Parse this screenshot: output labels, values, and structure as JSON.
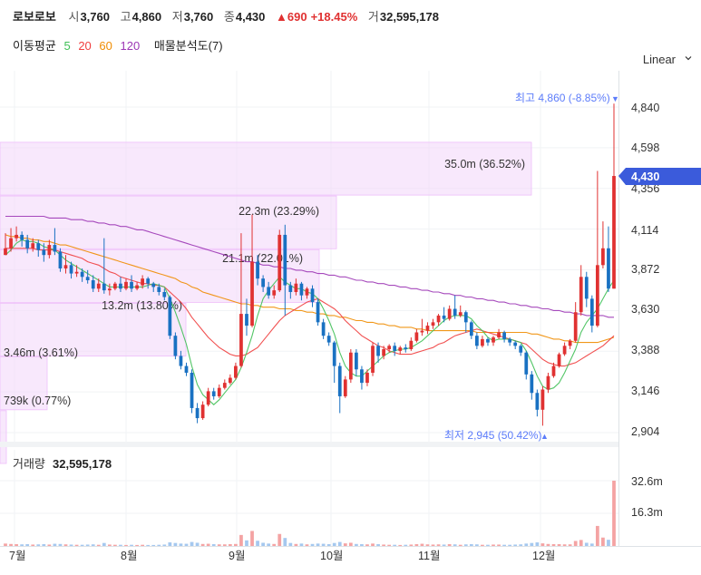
{
  "header": {
    "name": "로보로보",
    "open_label": "시",
    "open": "3,760",
    "high_label": "고",
    "high": "4,860",
    "low_label": "저",
    "low": "3,760",
    "close_label": "종",
    "close": "4,430",
    "change": "▲690",
    "change_pct": "+18.45%",
    "volume_label": "거",
    "volume": "32,595,178"
  },
  "ma_legend": {
    "label": "이동평균",
    "periods": [
      "5",
      "20",
      "60",
      "120"
    ],
    "volume_profile": "매물분석도(7)"
  },
  "scale_mode": "Linear",
  "price_axis": {
    "ticks": [
      "4,840",
      "4,598",
      "4,356",
      "4,114",
      "3,872",
      "3,630",
      "3,388",
      "3,146",
      "2,904"
    ],
    "current": "4,430"
  },
  "annotations": {
    "max_text": "최고 4,860 (-8.85%)",
    "min_text": "최저 2,945 (50.42%)"
  },
  "volume_profile": [
    {
      "label": "35.0m (36.52%)"
    },
    {
      "label": "22.3m (23.29%)"
    },
    {
      "label": "21.1m (22.01%)"
    },
    {
      "label": "13.2m (13.80%)"
    },
    {
      "label": "3.46m (3.61%)"
    },
    {
      "label": "739k (0.77%)"
    }
  ],
  "volume_panel": {
    "title_label": "거래량",
    "title_value": "32,595,178",
    "ticks": [
      "32.6m",
      "16.3m"
    ]
  },
  "x_axis": {
    "labels": [
      "7월",
      "8월",
      "9월",
      "10월",
      "11월",
      "12월"
    ]
  },
  "colors": {
    "up": "#e03131",
    "down": "#1971c2",
    "ma5": "#40c057",
    "ma20": "#f03e3e",
    "ma60": "#f08c00",
    "ma120": "#9c36b5",
    "profile": "#f3d9fa",
    "current": "#3b5bdb"
  },
  "chart_data": {
    "type": "candlestick",
    "ylim": [
      2904,
      4840
    ],
    "volume_ylim": [
      0,
      32.6
    ],
    "candles": [
      [
        3960,
        4000,
        4090,
        3960
      ],
      [
        4000,
        4060,
        4120,
        3980
      ],
      [
        4060,
        4080,
        4130,
        4040
      ],
      [
        4080,
        4050,
        4100,
        4010
      ],
      [
        4050,
        4000,
        4080,
        3970
      ],
      [
        4000,
        4030,
        4060,
        3980
      ],
      [
        4030,
        3990,
        4050,
        3950
      ],
      [
        3990,
        3960,
        4030,
        3920
      ],
      [
        3960,
        4020,
        4050,
        3940
      ],
      [
        4020,
        3980,
        4120,
        3960
      ],
      [
        3980,
        3880,
        4000,
        3860
      ],
      [
        3880,
        3900,
        3960,
        3850
      ],
      [
        3900,
        3850,
        3920,
        3820
      ],
      [
        3850,
        3860,
        3900,
        3830
      ],
      [
        3860,
        3830,
        3880,
        3800
      ],
      [
        3830,
        3810,
        3870,
        3790
      ],
      [
        3810,
        3760,
        3840,
        3740
      ],
      [
        3760,
        3790,
        3820,
        3740
      ],
      [
        3790,
        3750,
        4060,
        3730
      ],
      [
        3750,
        3760,
        3790,
        3720
      ],
      [
        3760,
        3790,
        3800,
        3750
      ],
      [
        3790,
        3760,
        3830,
        3740
      ],
      [
        3760,
        3800,
        3820,
        3750
      ],
      [
        3800,
        3760,
        3840,
        3740
      ],
      [
        3760,
        3780,
        3800,
        3750
      ],
      [
        3780,
        3820,
        3840,
        3760
      ],
      [
        3820,
        3790,
        3830,
        3760
      ],
      [
        3790,
        3770,
        3800,
        3740
      ],
      [
        3770,
        3740,
        3790,
        3720
      ],
      [
        3740,
        3710,
        3760,
        3690
      ],
      [
        3710,
        3480,
        3720,
        3460
      ],
      [
        3480,
        3360,
        3500,
        3340
      ],
      [
        3360,
        3300,
        3390,
        3280
      ],
      [
        3300,
        3260,
        3320,
        3240
      ],
      [
        3260,
        3050,
        3280,
        3020
      ],
      [
        3050,
        2990,
        3080,
        2960
      ],
      [
        2990,
        3070,
        3090,
        2980
      ],
      [
        3070,
        3150,
        3170,
        3060
      ],
      [
        3150,
        3120,
        3170,
        3100
      ],
      [
        3120,
        3170,
        3190,
        3110
      ],
      [
        3170,
        3200,
        3220,
        3160
      ],
      [
        3200,
        3230,
        3250,
        3190
      ],
      [
        3230,
        3300,
        3320,
        3220
      ],
      [
        3300,
        3610,
        4090,
        3290
      ],
      [
        3610,
        3540,
        3700,
        3480
      ],
      [
        3540,
        3920,
        4200,
        3530
      ],
      [
        3920,
        3820,
        3960,
        3780
      ],
      [
        3820,
        3770,
        3840,
        3740
      ],
      [
        3770,
        3720,
        3800,
        3700
      ],
      [
        3720,
        3750,
        3780,
        3700
      ],
      [
        3750,
        4080,
        4110,
        3740
      ],
      [
        4080,
        3780,
        4140,
        3600
      ],
      [
        3780,
        3740,
        3800,
        3700
      ],
      [
        3740,
        3790,
        3820,
        3720
      ],
      [
        3790,
        3720,
        3800,
        3690
      ],
      [
        3720,
        3760,
        3770,
        3700
      ],
      [
        3760,
        3680,
        3780,
        3650
      ],
      [
        3680,
        3560,
        3700,
        3540
      ],
      [
        3560,
        3480,
        3580,
        3460
      ],
      [
        3480,
        3440,
        3500,
        3420
      ],
      [
        3440,
        3300,
        3450,
        3200
      ],
      [
        3300,
        3120,
        3320,
        3020
      ],
      [
        3120,
        3220,
        3240,
        3110
      ],
      [
        3220,
        3380,
        3400,
        3200
      ],
      [
        3380,
        3280,
        3400,
        3240
      ],
      [
        3280,
        3200,
        3300,
        3160
      ],
      [
        3200,
        3260,
        3280,
        3180
      ],
      [
        3260,
        3420,
        3440,
        3240
      ],
      [
        3420,
        3360,
        3440,
        3320
      ],
      [
        3360,
        3400,
        3420,
        3340
      ],
      [
        3400,
        3420,
        3430,
        3380
      ],
      [
        3420,
        3390,
        3440,
        3360
      ],
      [
        3390,
        3410,
        3420,
        3370
      ],
      [
        3410,
        3400,
        3430,
        3380
      ],
      [
        3400,
        3450,
        3470,
        3390
      ],
      [
        3450,
        3500,
        3520,
        3440
      ],
      [
        3500,
        3510,
        3580,
        3480
      ],
      [
        3510,
        3540,
        3560,
        3490
      ],
      [
        3540,
        3560,
        3580,
        3520
      ],
      [
        3560,
        3600,
        3610,
        3540
      ],
      [
        3600,
        3580,
        3650,
        3560
      ],
      [
        3580,
        3640,
        3660,
        3570
      ],
      [
        3640,
        3600,
        3720,
        3580
      ],
      [
        3600,
        3620,
        3660,
        3590
      ],
      [
        3620,
        3560,
        3630,
        3500
      ],
      [
        3560,
        3480,
        3570,
        3460
      ],
      [
        3480,
        3420,
        3500,
        3400
      ],
      [
        3420,
        3460,
        3480,
        3410
      ],
      [
        3460,
        3440,
        3470,
        3420
      ],
      [
        3440,
        3470,
        3480,
        3420
      ],
      [
        3470,
        3500,
        3520,
        3460
      ],
      [
        3500,
        3460,
        3510,
        3440
      ],
      [
        3460,
        3440,
        3470,
        3420
      ],
      [
        3440,
        3420,
        3450,
        3400
      ],
      [
        3420,
        3380,
        3430,
        3360
      ],
      [
        3380,
        3250,
        3390,
        3220
      ],
      [
        3250,
        3140,
        3270,
        3100
      ],
      [
        3140,
        3040,
        3160,
        3000
      ],
      [
        3040,
        3160,
        3180,
        2945
      ],
      [
        3160,
        3240,
        3260,
        3140
      ],
      [
        3240,
        3300,
        3320,
        3230
      ],
      [
        3300,
        3370,
        3380,
        3290
      ],
      [
        3370,
        3420,
        3440,
        3360
      ],
      [
        3420,
        3450,
        3460,
        3400
      ],
      [
        3450,
        3620,
        3680,
        3440
      ],
      [
        3620,
        3830,
        3900,
        3600
      ],
      [
        3830,
        3700,
        3860,
        3650
      ],
      [
        3700,
        3540,
        3720,
        3500
      ],
      [
        3540,
        3900,
        4460,
        3530
      ],
      [
        3900,
        4000,
        4160,
        3880
      ],
      [
        4000,
        3760,
        4130,
        3740
      ],
      [
        3760,
        4430,
        4860,
        3760
      ]
    ],
    "volume": [
      1.2,
      1.0,
      0.9,
      0.8,
      0.9,
      0.7,
      0.8,
      0.9,
      0.7,
      1.1,
      1.0,
      0.8,
      0.7,
      0.6,
      0.6,
      0.7,
      0.8,
      0.6,
      1.5,
      0.7,
      0.6,
      0.6,
      0.5,
      0.6,
      0.5,
      0.6,
      0.5,
      0.5,
      0.6,
      0.7,
      1.8,
      1.5,
      1.2,
      1.1,
      2.0,
      1.6,
      1.0,
      1.1,
      0.9,
      0.8,
      0.8,
      0.9,
      1.0,
      5.5,
      2.8,
      7.5,
      2.6,
      1.6,
      1.2,
      1.0,
      6.0,
      4.0,
      1.5,
      1.0,
      1.2,
      0.8,
      1.0,
      1.2,
      1.1,
      0.9,
      1.5,
      2.0,
      1.3,
      1.6,
      1.0,
      0.9,
      0.8,
      1.2,
      0.9,
      0.7,
      0.6,
      0.6,
      0.5,
      0.6,
      0.7,
      0.9,
      1.1,
      0.8,
      0.7,
      0.8,
      0.7,
      0.9,
      0.8,
      0.6,
      0.8,
      0.9,
      0.8,
      0.6,
      0.6,
      0.7,
      0.7,
      0.6,
      0.6,
      0.7,
      0.8,
      1.2,
      1.5,
      1.8,
      1.3,
      1.0,
      0.9,
      0.9,
      0.8,
      0.8,
      2.5,
      3.0,
      1.6,
      1.2,
      10.0,
      4.2,
      3.1,
      32.6
    ],
    "ma5": [
      3960,
      3990,
      4030,
      4050,
      4040,
      4040,
      4030,
      4010,
      4000,
      3990,
      3960,
      3930,
      3910,
      3890,
      3870,
      3850,
      3830,
      3810,
      3790,
      3770,
      3770,
      3770,
      3770,
      3770,
      3770,
      3770,
      3780,
      3790,
      3780,
      3770,
      3700,
      3620,
      3530,
      3430,
      3300,
      3190,
      3130,
      3100,
      3070,
      3100,
      3140,
      3180,
      3220,
      3290,
      3380,
      3480,
      3600,
      3700,
      3750,
      3790,
      3830,
      3800,
      3780,
      3760,
      3760,
      3740,
      3730,
      3700,
      3640,
      3570,
      3490,
      3380,
      3300,
      3260,
      3240,
      3240,
      3270,
      3300,
      3330,
      3360,
      3380,
      3390,
      3400,
      3400,
      3410,
      3430,
      3450,
      3480,
      3510,
      3540,
      3570,
      3590,
      3600,
      3600,
      3600,
      3580,
      3540,
      3510,
      3470,
      3450,
      3460,
      3460,
      3460,
      3450,
      3440,
      3390,
      3320,
      3240,
      3180,
      3160,
      3170,
      3200,
      3260,
      3330,
      3400,
      3500,
      3560,
      3600,
      3640,
      3700,
      3760,
      3810
    ],
    "ma20": [
      4000,
      4000,
      4000,
      4000,
      4000,
      4000,
      3990,
      3990,
      3990,
      3990,
      3980,
      3970,
      3960,
      3950,
      3940,
      3920,
      3910,
      3900,
      3880,
      3860,
      3850,
      3830,
      3820,
      3810,
      3800,
      3790,
      3790,
      3780,
      3780,
      3770,
      3740,
      3710,
      3680,
      3640,
      3590,
      3550,
      3510,
      3470,
      3440,
      3410,
      3390,
      3370,
      3360,
      3360,
      3370,
      3390,
      3410,
      3450,
      3490,
      3530,
      3570,
      3600,
      3620,
      3640,
      3660,
      3680,
      3690,
      3700,
      3680,
      3660,
      3640,
      3610,
      3570,
      3540,
      3510,
      3480,
      3460,
      3440,
      3420,
      3410,
      3390,
      3380,
      3370,
      3370,
      3370,
      3380,
      3390,
      3400,
      3410,
      3430,
      3440,
      3460,
      3480,
      3490,
      3500,
      3510,
      3520,
      3510,
      3500,
      3490,
      3480,
      3470,
      3460,
      3450,
      3440,
      3430,
      3400,
      3370,
      3340,
      3320,
      3310,
      3300,
      3300,
      3310,
      3320,
      3340,
      3360,
      3380,
      3400,
      3420,
      3450,
      3480
    ],
    "ma60": [
      4080,
      4070,
      4070,
      4060,
      4060,
      4050,
      4050,
      4040,
      4040,
      4030,
      4020,
      4020,
      4010,
      4000,
      3990,
      3980,
      3970,
      3960,
      3950,
      3940,
      3930,
      3920,
      3910,
      3900,
      3890,
      3880,
      3870,
      3860,
      3850,
      3840,
      3830,
      3820,
      3800,
      3790,
      3770,
      3760,
      3740,
      3730,
      3720,
      3710,
      3700,
      3690,
      3680,
      3670,
      3670,
      3660,
      3660,
      3650,
      3650,
      3650,
      3640,
      3640,
      3640,
      3630,
      3630,
      3620,
      3620,
      3610,
      3610,
      3600,
      3600,
      3590,
      3590,
      3580,
      3570,
      3570,
      3560,
      3560,
      3550,
      3550,
      3540,
      3540,
      3530,
      3530,
      3530,
      3520,
      3520,
      3510,
      3510,
      3510,
      3510,
      3510,
      3510,
      3510,
      3510,
      3510,
      3500,
      3500,
      3500,
      3500,
      3500,
      3500,
      3500,
      3500,
      3500,
      3500,
      3490,
      3490,
      3480,
      3470,
      3460,
      3460,
      3450,
      3450,
      3440,
      3440,
      3440,
      3440,
      3440,
      3450,
      3460,
      3470
    ],
    "ma120": [
      4190,
      4190,
      4190,
      4190,
      4190,
      4190,
      4190,
      4190,
      4180,
      4180,
      4180,
      4180,
      4170,
      4170,
      4170,
      4160,
      4160,
      4150,
      4150,
      4140,
      4140,
      4130,
      4130,
      4120,
      4110,
      4110,
      4100,
      4090,
      4080,
      4070,
      4060,
      4050,
      4040,
      4030,
      4020,
      4010,
      4000,
      3990,
      3980,
      3970,
      3960,
      3950,
      3940,
      3930,
      3920,
      3920,
      3910,
      3900,
      3900,
      3890,
      3890,
      3880,
      3880,
      3870,
      3870,
      3860,
      3860,
      3850,
      3850,
      3840,
      3840,
      3830,
      3830,
      3820,
      3810,
      3810,
      3800,
      3800,
      3790,
      3790,
      3780,
      3780,
      3770,
      3770,
      3760,
      3760,
      3750,
      3750,
      3740,
      3740,
      3730,
      3730,
      3720,
      3720,
      3710,
      3710,
      3700,
      3700,
      3690,
      3690,
      3680,
      3680,
      3670,
      3670,
      3660,
      3660,
      3650,
      3650,
      3640,
      3640,
      3630,
      3630,
      3620,
      3620,
      3610,
      3610,
      3600,
      3600,
      3600,
      3600,
      3590,
      3590
    ]
  }
}
